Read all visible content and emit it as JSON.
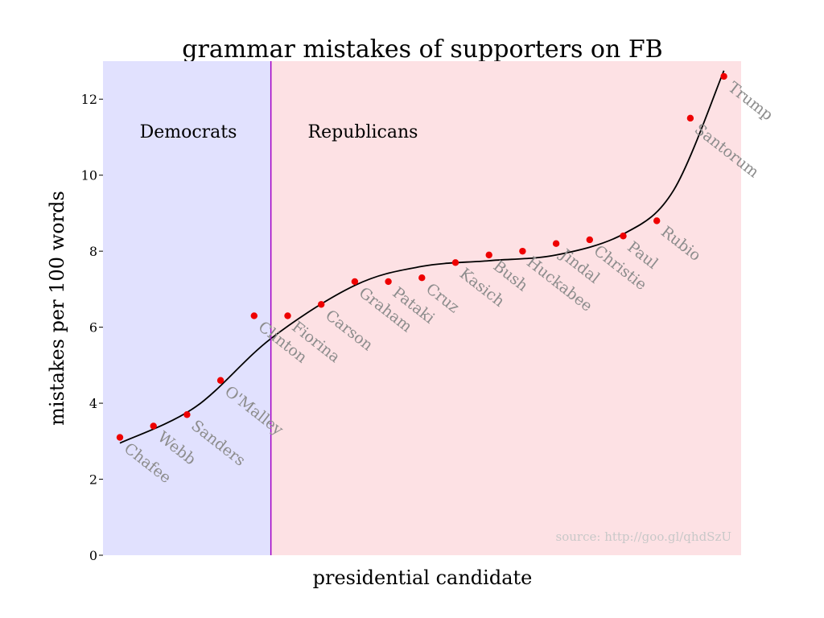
{
  "chart_data": {
    "type": "scatter",
    "title": "grammar mistakes of supporters on FB",
    "xlabel": "presidential candidate",
    "ylabel": "mistakes per 100 words",
    "ylim": [
      0,
      13
    ],
    "yticks": [
      0,
      2,
      4,
      6,
      8,
      10,
      12
    ],
    "regions": [
      {
        "label": "Democrats",
        "color": "#e1e1fe",
        "from_index": 0,
        "to_index": 4
      },
      {
        "label": "Republicans",
        "color": "#fde1e4",
        "from_index": 5,
        "to_index": 18
      }
    ],
    "divider_color": "#a000c8",
    "point_color": "#ee0000",
    "trend_color": "#000000",
    "label_color": "#8c8c8c",
    "series": [
      {
        "points": [
          {
            "candidate": "Chafee",
            "value": 3.1
          },
          {
            "candidate": "Webb",
            "value": 3.4
          },
          {
            "candidate": "Sanders",
            "value": 3.7
          },
          {
            "candidate": "O'Malley",
            "value": 4.6
          },
          {
            "candidate": "Clinton",
            "value": 6.3
          },
          {
            "candidate": "Fiorina",
            "value": 6.3
          },
          {
            "candidate": "Carson",
            "value": 6.6
          },
          {
            "candidate": "Graham",
            "value": 7.2
          },
          {
            "candidate": "Pataki",
            "value": 7.2
          },
          {
            "candidate": "Cruz",
            "value": 7.3
          },
          {
            "candidate": "Kasich",
            "value": 7.7
          },
          {
            "candidate": "Bush",
            "value": 7.9
          },
          {
            "candidate": "Huckabee",
            "value": 8.0
          },
          {
            "candidate": "Jindal",
            "value": 8.2
          },
          {
            "candidate": "Christie",
            "value": 8.3
          },
          {
            "candidate": "Paul",
            "value": 8.4
          },
          {
            "candidate": "Rubio",
            "value": 8.8
          },
          {
            "candidate": "Santorum",
            "value": 11.5
          },
          {
            "candidate": "Trump",
            "value": 12.6
          }
        ]
      }
    ],
    "trend": {
      "type": "cubic",
      "values": [
        {
          "x": 0,
          "y": 2.95
        },
        {
          "x": 2.25,
          "y": 3.9
        },
        {
          "x": 4.5,
          "y": 5.7
        },
        {
          "x": 7,
          "y": 7.1
        },
        {
          "x": 9,
          "y": 7.6
        },
        {
          "x": 11,
          "y": 7.75
        },
        {
          "x": 13,
          "y": 7.9
        },
        {
          "x": 15,
          "y": 8.45
        },
        {
          "x": 16.5,
          "y": 9.6
        },
        {
          "x": 18,
          "y": 12.75
        }
      ]
    },
    "source": "source: http://goo.gl/qhdSzU",
    "grid": false
  }
}
